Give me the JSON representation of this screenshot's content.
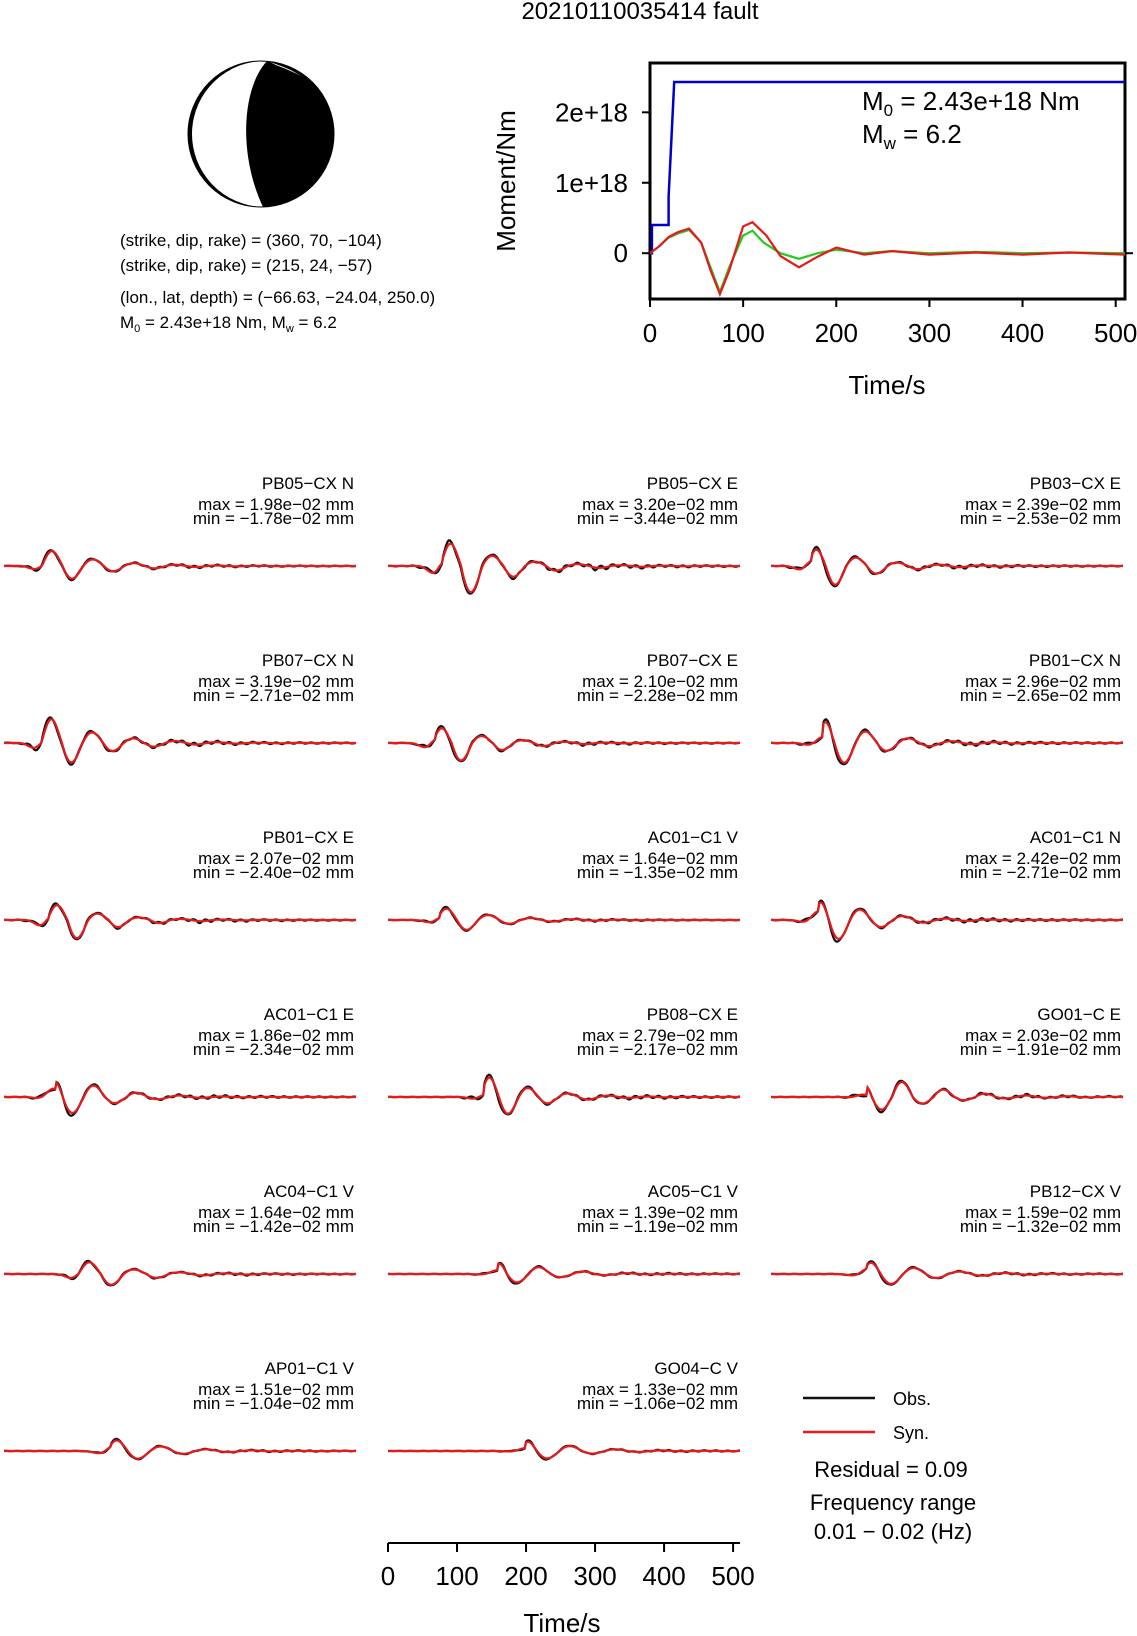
{
  "title": "20210110035414 fault",
  "colors": {
    "observed": "#111111",
    "synthetic": "#e41a1c",
    "moment_cumulative": "#0000cc",
    "moment_rate_green": "#22cc22",
    "beachball_fill": "#000000"
  },
  "focal": {
    "line1": "(strike, dip, rake) = (360, 70, −104)",
    "line2": "(strike, dip, rake) = (215, 24, −57)",
    "line3": "(lon., lat, depth) = (−66.63, −24.04, 250.0)",
    "m0_label": "M",
    "m0_sub": "0",
    "m0_value": " = 2.43e+18 Nm, M",
    "mw_sub": "w",
    "mw_value": " = 6.2"
  },
  "moment_panel": {
    "ylabel": "Moment/Nm",
    "xlabel": "Time/s",
    "m0_label": "M",
    "m0_sub": "0",
    "m0_text": " = 2.43e+18 Nm",
    "mw_label": "M",
    "mw_sub": "w",
    "mw_text": " = 6.2"
  },
  "waveform_axis": {
    "xlabel": "Time/s"
  },
  "legend": {
    "obs": "Obs.",
    "syn": "Syn.",
    "residual": "Residual = 0.09",
    "freq_title": "Frequency range",
    "freq_range": "0.01 − 0.02 (Hz)"
  },
  "chart_data": [
    {
      "type": "line",
      "title": "",
      "xlabel": "Time/s",
      "ylabel": "Moment/Nm",
      "xlim": [
        0,
        510
      ],
      "ylim": [
        -6.5e+17,
        2.7e+18
      ],
      "xticks": [
        0,
        100,
        200,
        300,
        400,
        500
      ],
      "yticks": [
        0,
        1e+18,
        2e+18
      ],
      "ytick_labels": [
        "0",
        "1e+18",
        "2e+18"
      ],
      "grid": false,
      "series": [
        {
          "color": "#0000cc",
          "x": [
            0,
            2,
            2,
            20,
            20,
            26,
            30,
            510
          ],
          "y": [
            0,
            0,
            4e+17,
            4e+17,
            8e+17,
            2.43e+18,
            2.43e+18,
            2.43e+18
          ]
        },
        {
          "color": "#22cc22",
          "x": [
            0,
            10,
            20,
            30,
            42,
            55,
            65,
            75,
            85,
            100,
            110,
            122,
            140,
            160,
            180,
            200,
            230,
            260,
            300,
            350,
            400,
            450,
            510
          ],
          "y": [
            0,
            1e+17,
            2.2e+17,
            2.8e+17,
            3.3e+17,
            1.5e+17,
            -2e+17,
            -5.5e+17,
            -2e+17,
            2.5e+17,
            3.2e+17,
            1.5e+17,
            0,
            -8e+16,
            0,
            5e+16,
            0,
            3e+16,
            0,
            2e+16,
            0,
            1e+16,
            0
          ]
        },
        {
          "color": "#e41a1c",
          "x": [
            0,
            10,
            20,
            30,
            42,
            55,
            65,
            75,
            85,
            100,
            110,
            125,
            140,
            160,
            180,
            200,
            230,
            260,
            300,
            350,
            400,
            450,
            510
          ],
          "y": [
            0,
            1e+17,
            2.3e+17,
            3e+17,
            3.5e+17,
            1.5e+17,
            -2.4e+17,
            -5.8e+17,
            -2.5e+17,
            3.8e+17,
            4.4e+17,
            2.5e+17,
            -4e+16,
            -2e+17,
            -5e+16,
            8e+16,
            -2e+16,
            3e+16,
            -2e+16,
            1e+16,
            -2e+16,
            1e+16,
            -2e+16
          ]
        }
      ]
    },
    {
      "type": "line",
      "title": "",
      "xlabel": "Time/s",
      "xlim": [
        0,
        510
      ],
      "xticks": [
        0,
        100,
        200,
        300,
        400,
        500
      ],
      "note_units": "mm",
      "stations": [
        {
          "name": "PB05−CX N",
          "max": "max = 1.98e−02 mm",
          "min": "min = −1.78e−02 mm",
          "vmax": 1.98,
          "vmin": -1.78,
          "t0": 55,
          "period": 60,
          "decay": 70,
          "phase": 0.1,
          "pre": 0.18
        },
        {
          "name": "PB05−CX E",
          "max": "max = 3.20e−02 mm",
          "min": "min = −3.44e−02 mm",
          "vmax": 3.2,
          "vmin": -3.44,
          "t0": 80,
          "period": 62,
          "decay": 70,
          "phase": 0.6,
          "pre": 0.28
        },
        {
          "name": "PB03−CX E",
          "max": "max = 2.39e−02 mm",
          "min": "min = −2.53e−02 mm",
          "vmax": 2.39,
          "vmin": -2.53,
          "t0": 60,
          "period": 60,
          "decay": 65,
          "phase": 1.2,
          "pre": 0.3
        },
        {
          "name": "PB07−CX N",
          "max": "max = 3.19e−02 mm",
          "min": "min = −2.71e−02 mm",
          "vmax": 3.19,
          "vmin": -2.71,
          "t0": 55,
          "period": 60,
          "decay": 70,
          "phase": 0.2,
          "pre": 0.2
        },
        {
          "name": "PB07−CX E",
          "max": "max = 2.10e−02 mm",
          "min": "min = −2.28e−02 mm",
          "vmax": 2.1,
          "vmin": -2.28,
          "t0": 70,
          "period": 60,
          "decay": 65,
          "phase": 0.9,
          "pre": 0.3
        },
        {
          "name": "PB01−CX N",
          "max": "max = 2.96e−02 mm",
          "min": "min = −2.65e−02 mm",
          "vmax": 2.96,
          "vmin": -2.65,
          "t0": 75,
          "period": 62,
          "decay": 65,
          "phase": 1.5,
          "pre": 0.2
        },
        {
          "name": "PB01−CX E",
          "max": "max = 2.07e−02 mm",
          "min": "min = −2.40e−02 mm",
          "vmax": 2.07,
          "vmin": -2.4,
          "t0": 65,
          "period": 60,
          "decay": 65,
          "phase": 0.4,
          "pre": 0.25
        },
        {
          "name": "AC01−C1 V",
          "max": "max = 1.64e−02 mm",
          "min": "min = −1.35e−02 mm",
          "vmax": 1.64,
          "vmin": -1.35,
          "t0": 75,
          "period": 62,
          "decay": 65,
          "phase": 0.7,
          "pre": 0.25
        },
        {
          "name": "AC01−C1 N",
          "max": "max = 2.42e−02 mm",
          "min": "min = −2.71e−02 mm",
          "vmax": 2.42,
          "vmin": -2.71,
          "t0": 70,
          "period": 62,
          "decay": 60,
          "phase": 1.8,
          "pre": 0.3
        },
        {
          "name": "AC01−C1 E",
          "max": "max = 1.86e−02 mm",
          "min": "min = −2.34e−02 mm",
          "vmax": 1.86,
          "vmin": -2.34,
          "t0": 75,
          "period": 62,
          "decay": 60,
          "phase": 2.2,
          "pre": 0.3
        },
        {
          "name": "PB08−CX E",
          "max": "max = 2.79e−02 mm",
          "min": "min = −2.17e−02 mm",
          "vmax": 2.79,
          "vmin": -2.17,
          "t0": 140,
          "period": 58,
          "decay": 60,
          "phase": 1.0,
          "pre": 0.12
        },
        {
          "name": "GO01−C E",
          "max": "max = 2.03e−02 mm",
          "min": "min = −1.91e−02 mm",
          "vmax": 2.03,
          "vmin": -1.91,
          "t0": 140,
          "period": 60,
          "decay": 80,
          "phase": 2.6,
          "pre": 0.1
        },
        {
          "name": "AC04−C1 V",
          "max": "max = 1.64e−02 mm",
          "min": "min = −1.42e−02 mm",
          "vmax": 1.64,
          "vmin": -1.42,
          "t0": 110,
          "period": 66,
          "decay": 65,
          "phase": 0.3,
          "pre": 0.3
        },
        {
          "name": "AC05−C1 V",
          "max": "max = 1.39e−02 mm",
          "min": "min = −1.19e−02 mm",
          "vmax": 1.39,
          "vmin": -1.19,
          "t0": 160,
          "period": 64,
          "decay": 60,
          "phase": 2.0,
          "pre": 0.2
        },
        {
          "name": "PB12−CX V",
          "max": "max = 1.59e−02 mm",
          "min": "min = −1.32e−02 mm",
          "vmax": 1.59,
          "vmin": -1.32,
          "t0": 140,
          "period": 66,
          "decay": 70,
          "phase": 1.4,
          "pre": 0.35
        },
        {
          "name": "AP01−C1 V",
          "max": "max = 1.51e−02 mm",
          "min": "min = −1.04e−02 mm",
          "vmax": 1.51,
          "vmin": -1.04,
          "t0": 155,
          "period": 66,
          "decay": 65,
          "phase": 0.9,
          "pre": 0.4
        },
        {
          "name": "GO04−C V",
          "max": "max = 1.33e−02 mm",
          "min": "min = −1.06e−02 mm",
          "vmax": 1.33,
          "vmin": -1.06,
          "t0": 200,
          "period": 66,
          "decay": 60,
          "phase": 1.7,
          "pre": 0.2
        }
      ]
    }
  ]
}
